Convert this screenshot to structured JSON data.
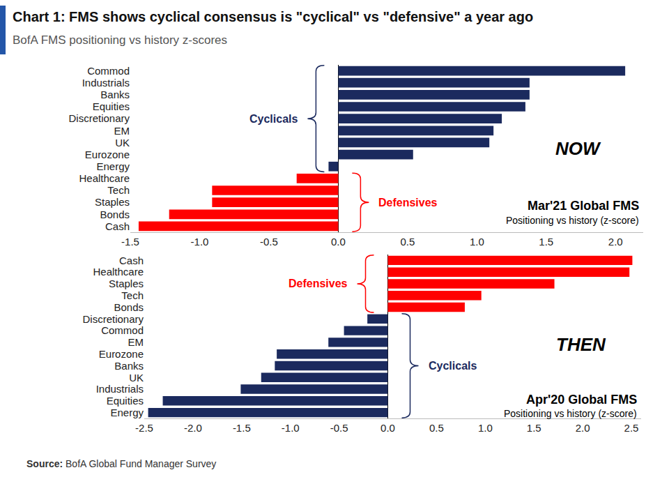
{
  "title": "Chart 1: FMS shows cyclical consensus is \"cyclical\" vs \"defensive\" a year ago",
  "subtitle": "BofA FMS positioning vs history z-scores",
  "source_label": "Source:",
  "source": "BofA Global Fund Manager Survey",
  "chart_data": [
    {
      "type": "bar",
      "orientation": "horizontal",
      "label": "NOW",
      "title": "Mar'21 Global FMS",
      "subtitle": "Positioning vs history (z-score)",
      "categories": [
        "Commod",
        "Industrials",
        "Banks",
        "Equities",
        "Discretionary",
        "EM",
        "UK",
        "Eurozone",
        "Energy",
        "Healthcare",
        "Tech",
        "Staples",
        "Bonds",
        "Cash"
      ],
      "values": [
        2.07,
        1.38,
        1.38,
        1.35,
        1.18,
        1.12,
        1.09,
        0.54,
        -0.07,
        -0.3,
        -0.91,
        -0.91,
        -1.22,
        -1.44
      ],
      "colors": [
        "#1b2a5e",
        "#1b2a5e",
        "#1b2a5e",
        "#1b2a5e",
        "#1b2a5e",
        "#1b2a5e",
        "#1b2a5e",
        "#1b2a5e",
        "#1b2a5e",
        "#ff0000",
        "#ff0000",
        "#ff0000",
        "#ff0000",
        "#ff0000"
      ],
      "groups": [
        {
          "name": "Cyclicals",
          "color": "#1b2a5e",
          "from": "Commod",
          "to": "Energy"
        },
        {
          "name": "Defensives",
          "color": "#ff0000",
          "from": "Healthcare",
          "to": "Cash"
        }
      ],
      "xlim": [
        -1.5,
        2.2
      ],
      "xticks": [
        -1.5,
        {
          "value": -1,
          "label": "-1.0"
        },
        -0.5,
        {
          "value": 0,
          "label": "0.0"
        },
        0.5,
        {
          "value": 1,
          "label": "1.0"
        },
        1.5,
        {
          "value": 2,
          "label": "2.0"
        }
      ],
      "grid": false
    },
    {
      "type": "bar",
      "orientation": "horizontal",
      "label": "THEN",
      "title": "Apr'20 Global FMS",
      "subtitle": "Positioning vs history (z-score)",
      "categories": [
        "Cash",
        "Healthcare",
        "Staples",
        "Tech",
        "Bonds",
        "Discretionary",
        "Commod",
        "EM",
        "Eurozone",
        "Banks",
        "UK",
        "Industrials",
        "Equities",
        "Energy"
      ],
      "values": [
        2.51,
        2.48,
        1.71,
        0.96,
        0.79,
        -0.21,
        -0.45,
        -0.61,
        -1.14,
        -1.16,
        -1.3,
        -1.51,
        -2.31,
        -2.46
      ],
      "colors": [
        "#ff0000",
        "#ff0000",
        "#ff0000",
        "#ff0000",
        "#ff0000",
        "#1b2a5e",
        "#1b2a5e",
        "#1b2a5e",
        "#1b2a5e",
        "#1b2a5e",
        "#1b2a5e",
        "#1b2a5e",
        "#1b2a5e",
        "#1b2a5e"
      ],
      "groups": [
        {
          "name": "Defensives",
          "color": "#ff0000",
          "from": "Cash",
          "to": "Bonds"
        },
        {
          "name": "Cyclicals",
          "color": "#1b2a5e",
          "from": "Discretionary",
          "to": "Energy"
        }
      ],
      "xlim": [
        -2.5,
        2.6
      ],
      "xticks": [
        -2.5,
        {
          "value": -2,
          "label": "-2.0"
        },
        -1.5,
        {
          "value": -1,
          "label": "-1.0"
        },
        -0.5,
        {
          "value": 0,
          "label": "0.0"
        },
        0.5,
        {
          "value": 1,
          "label": "1.0"
        },
        1.5,
        {
          "value": 2,
          "label": "2.0"
        },
        2.5
      ],
      "grid": false
    }
  ]
}
